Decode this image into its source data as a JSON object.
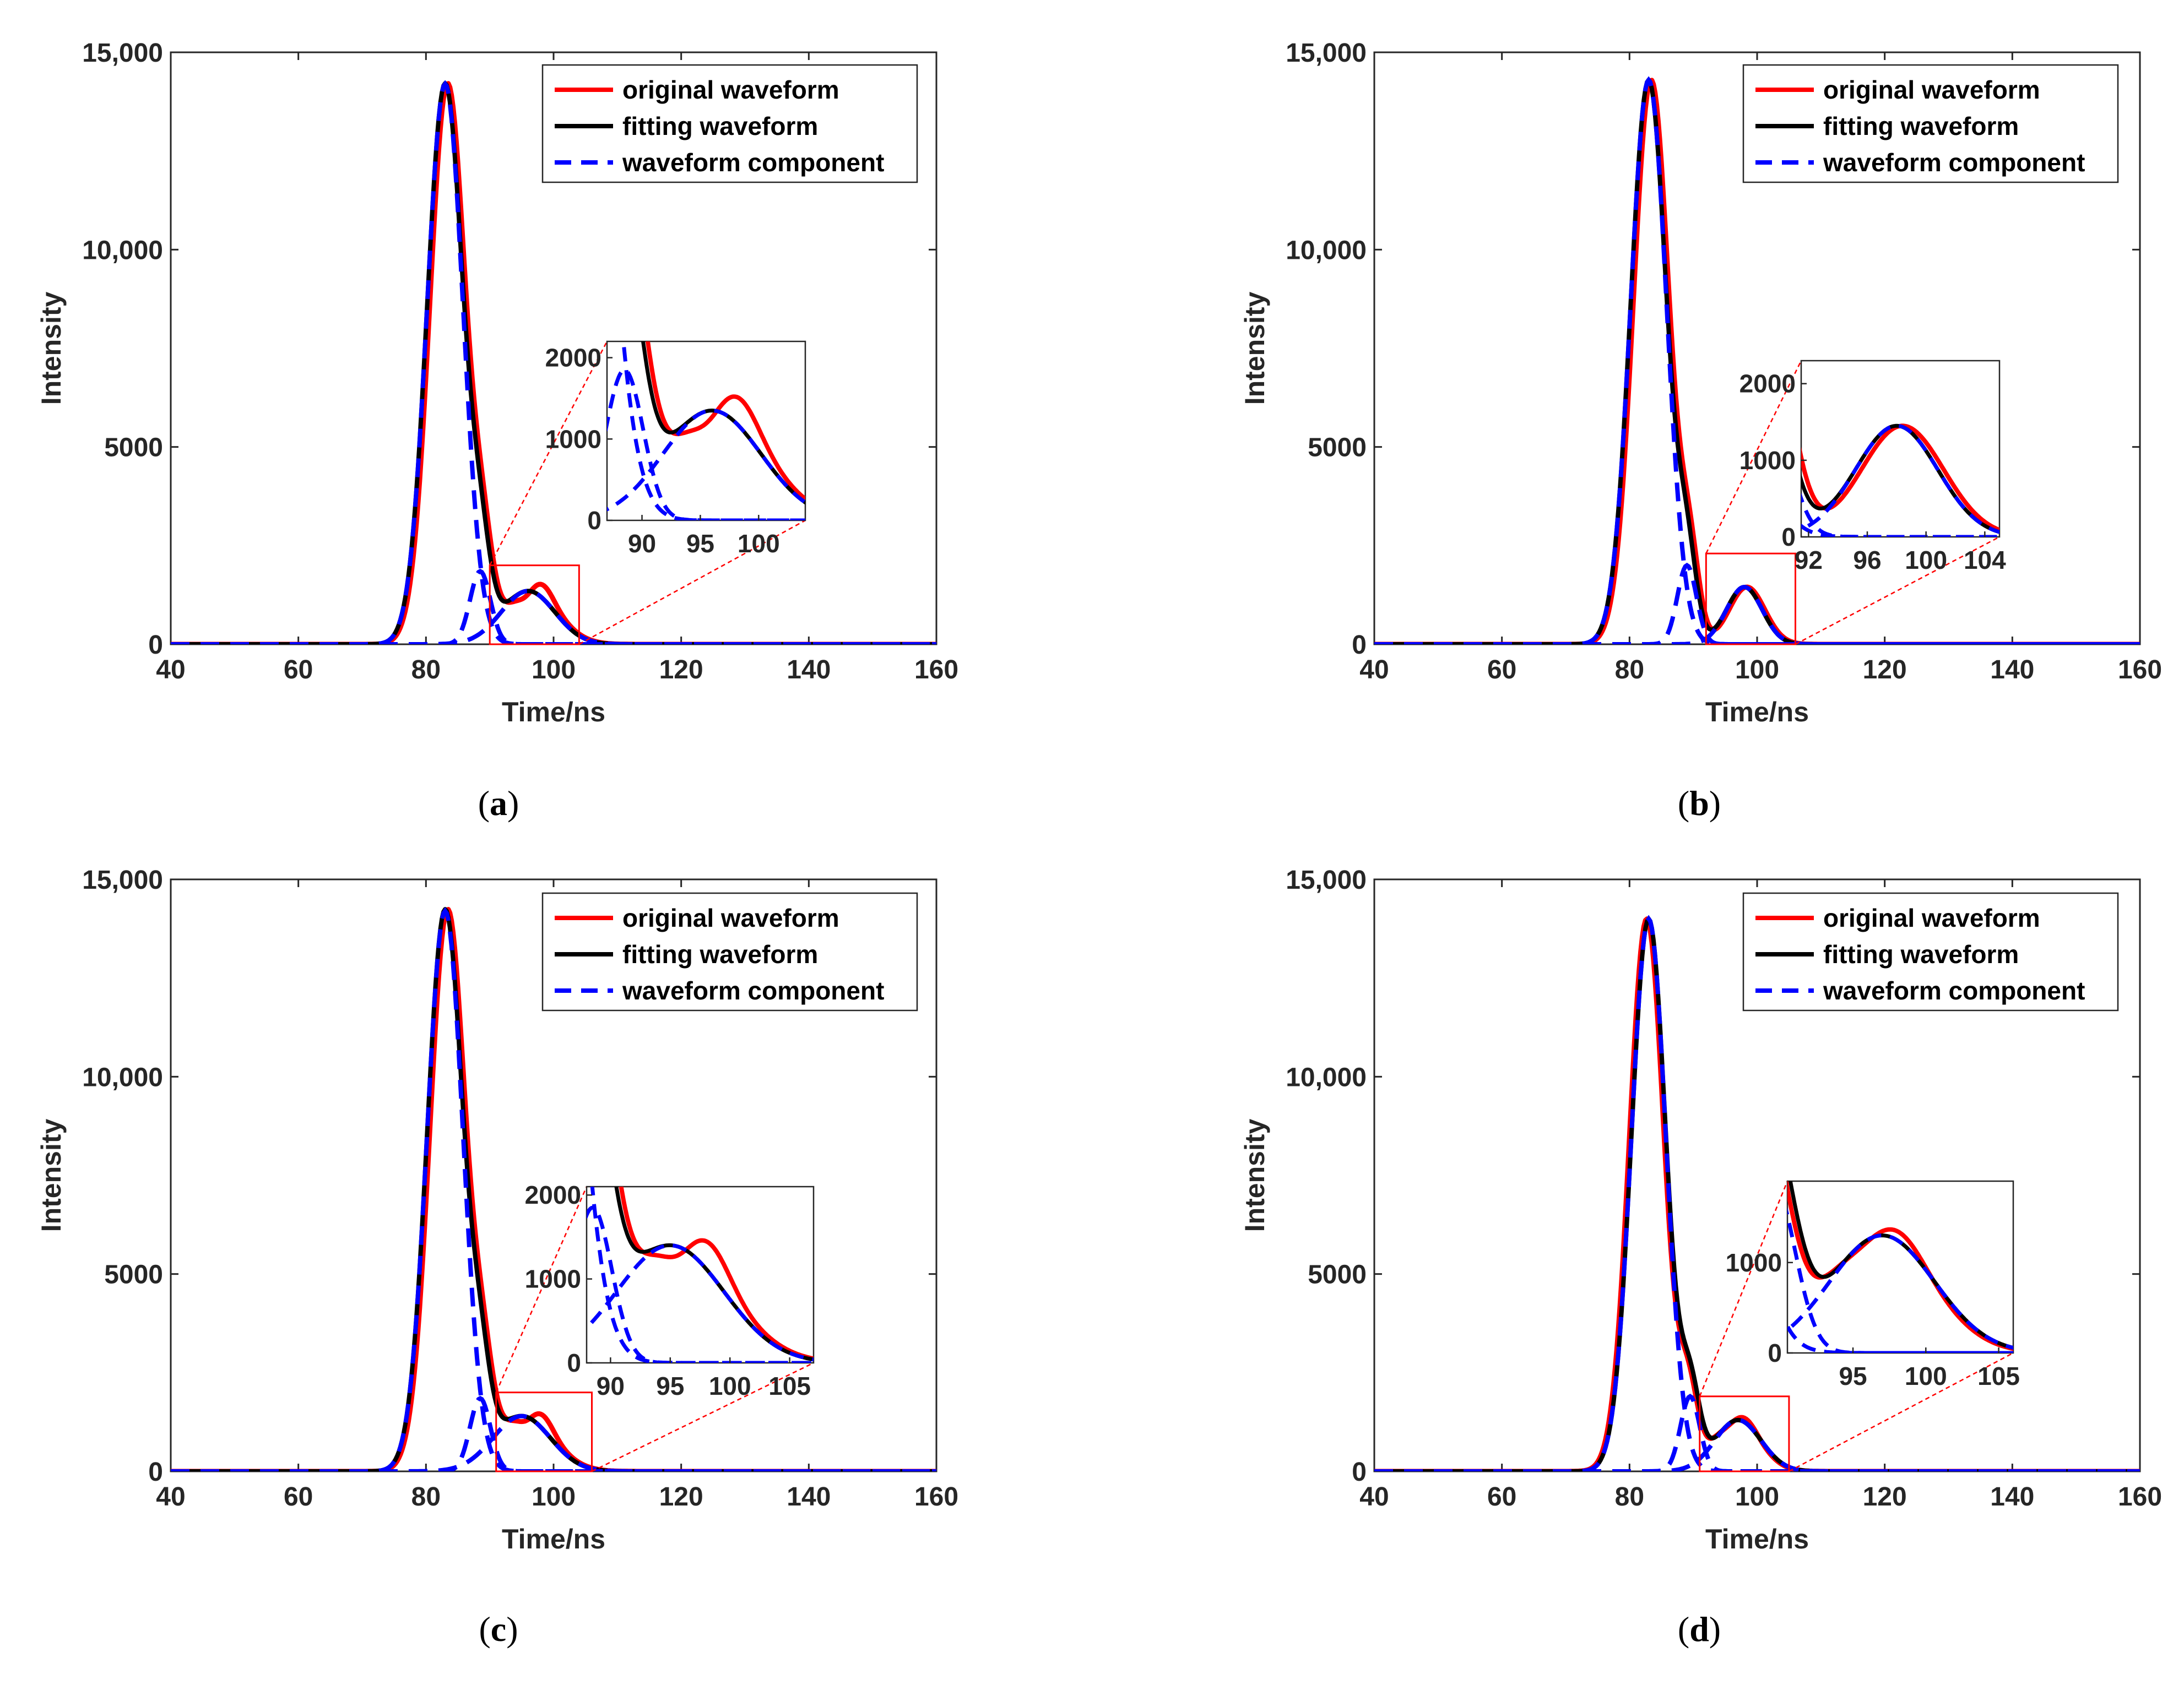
{
  "chart_data": [
    {
      "type": "line",
      "panel_label": "a",
      "xlabel": "Time/ns",
      "ylabel": "Intensity",
      "xlim": [
        40,
        160
      ],
      "ylim": [
        0,
        15000
      ],
      "xticks": [
        "40",
        "60",
        "80",
        "100",
        "120",
        "140",
        "160"
      ],
      "yticks": [
        {
          "value": 0,
          "label": "0"
        },
        {
          "value": 5000,
          "label": "5000"
        },
        {
          "value": 10000,
          "label": "10,000"
        },
        {
          "value": 15000,
          "label": "15,000"
        }
      ],
      "legend": [
        "original waveform",
        "fitting waveform",
        "waveform component"
      ],
      "series": [
        {
          "name": "original waveform",
          "color": "#ff0000",
          "style": "solid"
        },
        {
          "name": "fitting waveform",
          "color": "#000000",
          "style": "solid"
        },
        {
          "name": "waveform component",
          "color": "#0000ff",
          "style": "dashed"
        }
      ],
      "components": [
        {
          "amplitude": 14200,
          "center": 83.0,
          "sigma": 2.8
        },
        {
          "amplitude": 1850,
          "center": 88.5,
          "sigma": 1.6
        },
        {
          "amplitude": 1350,
          "center": 96.0,
          "sigma": 4.2
        }
      ],
      "original_shift": 0.4,
      "original_bump": {
        "amplitude": 300,
        "center": 98.5,
        "sigma": 1.6
      },
      "zoom_region": {
        "xlim": [
          90,
          104
        ],
        "ylim": [
          0,
          2000
        ]
      },
      "inset": {
        "xlim": [
          87,
          104
        ],
        "ylim": [
          0,
          2200
        ],
        "xticks": [
          "90",
          "95",
          "100"
        ],
        "yticks": [
          {
            "value": 0,
            "label": "0"
          },
          {
            "value": 1000,
            "label": "1000"
          },
          {
            "value": 2000,
            "label": "2000"
          }
        ]
      }
    },
    {
      "type": "line",
      "panel_label": "b",
      "xlabel": "Time/ns",
      "ylabel": "Intensity",
      "xlim": [
        40,
        160
      ],
      "ylim": [
        0,
        15000
      ],
      "xticks": [
        "40",
        "60",
        "80",
        "100",
        "120",
        "140",
        "160"
      ],
      "yticks": [
        {
          "value": 0,
          "label": "0"
        },
        {
          "value": 5000,
          "label": "5000"
        },
        {
          "value": 10000,
          "label": "10,000"
        },
        {
          "value": 15000,
          "label": "15,000"
        }
      ],
      "legend": [
        "original waveform",
        "fitting waveform",
        "waveform component"
      ],
      "series": [
        {
          "name": "original waveform",
          "color": "#ff0000",
          "style": "solid"
        },
        {
          "name": "fitting waveform",
          "color": "#000000",
          "style": "solid"
        },
        {
          "name": "waveform component",
          "color": "#0000ff",
          "style": "dashed"
        }
      ],
      "components": [
        {
          "amplitude": 14300,
          "center": 83.0,
          "sigma": 2.8
        },
        {
          "amplitude": 2000,
          "center": 89.0,
          "sigma": 1.5
        },
        {
          "amplitude": 1450,
          "center": 98.0,
          "sigma": 2.8
        }
      ],
      "original_shift": 0.4,
      "original_bump": {
        "amplitude": 0,
        "center": 98.0,
        "sigma": 1.5
      },
      "zoom_region": {
        "xlim": [
          92,
          106
        ],
        "ylim": [
          0,
          2300
        ]
      },
      "inset": {
        "xlim": [
          91.5,
          105
        ],
        "ylim": [
          0,
          2300
        ],
        "xticks": [
          "92",
          "96",
          "100",
          "104"
        ],
        "yticks": [
          {
            "value": 0,
            "label": "0"
          },
          {
            "value": 1000,
            "label": "1000"
          },
          {
            "value": 2000,
            "label": "2000"
          }
        ]
      }
    },
    {
      "type": "line",
      "panel_label": "c",
      "xlabel": "Time/ns",
      "ylabel": "Intensity",
      "xlim": [
        40,
        160
      ],
      "ylim": [
        0,
        15000
      ],
      "xticks": [
        "40",
        "60",
        "80",
        "100",
        "120",
        "140",
        "160"
      ],
      "yticks": [
        {
          "value": 0,
          "label": "0"
        },
        {
          "value": 5000,
          "label": "5000"
        },
        {
          "value": 10000,
          "label": "10,000"
        },
        {
          "value": 15000,
          "label": "15,000"
        }
      ],
      "legend": [
        "original waveform",
        "fitting waveform",
        "waveform component"
      ],
      "series": [
        {
          "name": "original waveform",
          "color": "#ff0000",
          "style": "solid"
        },
        {
          "name": "fitting waveform",
          "color": "#000000",
          "style": "solid"
        },
        {
          "name": "waveform component",
          "color": "#0000ff",
          "style": "dashed"
        }
      ],
      "components": [
        {
          "amplitude": 14200,
          "center": 83.0,
          "sigma": 2.8
        },
        {
          "amplitude": 1850,
          "center": 88.5,
          "sigma": 1.6
        },
        {
          "amplitude": 1400,
          "center": 95.0,
          "sigma": 4.5
        }
      ],
      "original_shift": 0.4,
      "original_bump": {
        "amplitude": 300,
        "center": 98.5,
        "sigma": 1.6
      },
      "zoom_region": {
        "xlim": [
          91,
          106
        ],
        "ylim": [
          0,
          2000
        ]
      },
      "inset": {
        "xlim": [
          88,
          107
        ],
        "ylim": [
          0,
          2100
        ],
        "xticks": [
          "90",
          "95",
          "100",
          "105"
        ],
        "yticks": [
          {
            "value": 0,
            "label": "0"
          },
          {
            "value": 1000,
            "label": "1000"
          },
          {
            "value": 2000,
            "label": "2000"
          }
        ]
      }
    },
    {
      "type": "line",
      "panel_label": "d",
      "xlabel": "Time/ns",
      "ylabel": "Intensity",
      "xlim": [
        40,
        160
      ],
      "ylim": [
        0,
        15000
      ],
      "xticks": [
        "40",
        "60",
        "80",
        "100",
        "120",
        "140",
        "160"
      ],
      "yticks": [
        {
          "value": 0,
          "label": "0"
        },
        {
          "value": 5000,
          "label": "5000"
        },
        {
          "value": 10000,
          "label": "10,000"
        },
        {
          "value": 15000,
          "label": "15,000"
        }
      ],
      "legend": [
        "original waveform",
        "fitting waveform",
        "waveform component"
      ],
      "series": [
        {
          "name": "original waveform",
          "color": "#ff0000",
          "style": "solid"
        },
        {
          "name": "fitting waveform",
          "color": "#000000",
          "style": "solid"
        },
        {
          "name": "waveform component",
          "color": "#0000ff",
          "style": "dashed"
        }
      ],
      "components": [
        {
          "amplitude": 14000,
          "center": 83.0,
          "sigma": 2.7
        },
        {
          "amplitude": 1900,
          "center": 89.5,
          "sigma": 1.5
        },
        {
          "amplitude": 1300,
          "center": 97.0,
          "sigma": 3.6
        }
      ],
      "original_shift": -0.3,
      "original_bump": {
        "amplitude": 150,
        "center": 98.5,
        "sigma": 1.5
      },
      "zoom_region": {
        "xlim": [
          91,
          105
        ],
        "ylim": [
          0,
          1900
        ]
      },
      "inset": {
        "xlim": [
          90.5,
          106
        ],
        "ylim": [
          0,
          1900
        ],
        "xticks": [
          "95",
          "100",
          "105"
        ],
        "yticks": [
          {
            "value": 0,
            "label": "0"
          },
          {
            "value": 1000,
            "label": "1000"
          }
        ]
      }
    }
  ]
}
